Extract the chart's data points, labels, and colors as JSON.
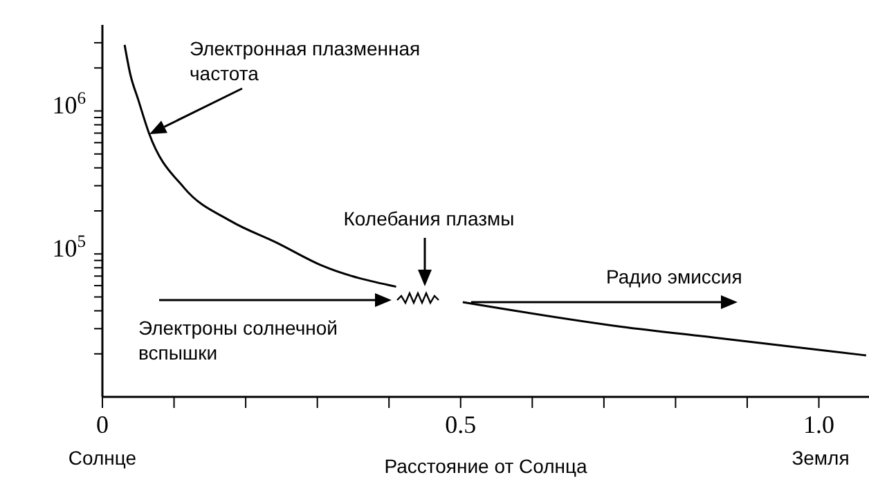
{
  "chart_data": {
    "type": "line",
    "xlabel": "Расстояние от Солнца",
    "x": [
      0.031,
      0.039,
      0.05,
      0.065,
      0.114,
      0.179,
      0.243,
      0.306,
      0.41,
      0.45,
      0.503,
      0.724,
      0.854,
      1.066
    ],
    "series": [
      {
        "color": "#000000",
        "values": [
          2900000,
          1800000,
          1200000,
          700000,
          290000,
          170000,
          120000,
          83000,
          59000,
          null,
          46000,
          31000,
          26000,
          19500
        ]
      }
    ],
    "log": "y",
    "xlim": [
      0,
      1.07
    ],
    "ylim": [
      10000,
      4000000
    ],
    "xticks": [
      0,
      {
        "value": 0.1,
        "label": null
      },
      {
        "value": 0.2,
        "label": null
      },
      {
        "value": 0.3,
        "label": null
      },
      {
        "value": 0.4,
        "label": null
      },
      0.5,
      {
        "value": 0.6,
        "label": null
      },
      {
        "value": 0.7,
        "label": null
      },
      {
        "value": 0.8,
        "label": null
      },
      {
        "value": 0.9,
        "label": null
      },
      {
        "value": 1,
        "label": "1.0"
      }
    ],
    "yticks": [
      {
        "value": 20000,
        "label": null
      },
      {
        "value": 30000,
        "label": null
      },
      {
        "value": 40000,
        "label": null
      },
      {
        "value": 50000,
        "label": null
      },
      {
        "value": 60000,
        "label": null
      },
      {
        "value": 70000,
        "label": null
      },
      {
        "value": 80000,
        "label": null
      },
      {
        "value": 90000,
        "label": null
      },
      {
        "value": 100000,
        "label": "10$^{5}$"
      },
      {
        "value": 200000,
        "label": null
      },
      {
        "value": 300000,
        "label": null
      },
      {
        "value": 400000,
        "label": null
      },
      {
        "value": 500000,
        "label": null
      },
      {
        "value": 600000,
        "label": null
      },
      {
        "value": 700000,
        "label": null
      },
      {
        "value": 800000,
        "label": null
      },
      {
        "value": 900000,
        "label": null
      },
      {
        "value": 1000000,
        "label": "10$^{6}$"
      },
      {
        "value": 2000000,
        "label": null
      },
      {
        "value": 3000000,
        "label": null
      }
    ],
    "marker": "none",
    "line_style": "solid",
    "grid": false,
    "legend": false,
    "annotations": [
      "Электронная плазменная\nчастота",
      "Колебания плазмы",
      {
        "text": "Радио эмиссия",
        "x": 0.503,
        "y": 46000
      },
      "Электроны солнечной\nвспышки",
      "Солнце",
      "Земля"
    ]
  }
}
